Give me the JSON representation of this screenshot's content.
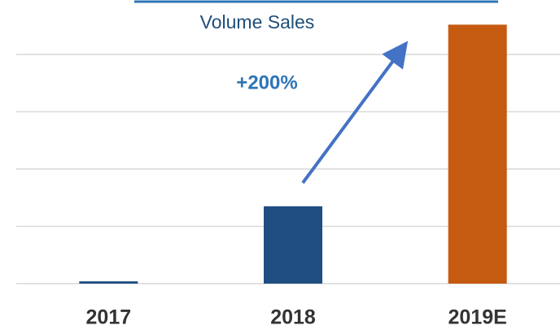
{
  "chart_data": {
    "type": "bar",
    "title": "Volume Sales",
    "annotation": "+200%",
    "categories": [
      "2017",
      "2018",
      "2019E"
    ],
    "values": [
      0.04,
      1.35,
      4.52
    ],
    "colors": [
      "#1f4e82",
      "#1f4e82",
      "#c55a11"
    ],
    "ylim": [
      0,
      5
    ],
    "yticks": [
      0,
      1,
      2,
      3,
      4
    ],
    "grid": true
  }
}
